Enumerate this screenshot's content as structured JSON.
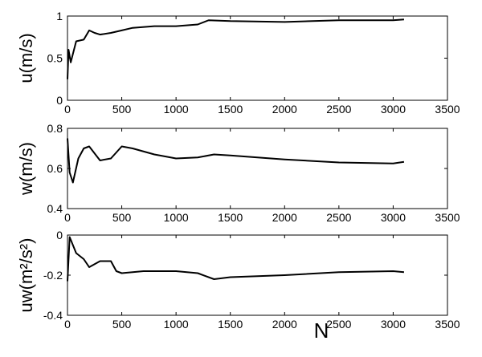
{
  "chart_data": [
    {
      "type": "line",
      "ylabel": "u(m/s)",
      "x": [
        0,
        10,
        30,
        50,
        80,
        150,
        200,
        250,
        300,
        400,
        500,
        600,
        800,
        1000,
        1200,
        1300,
        1500,
        2000,
        2500,
        3000,
        3100
      ],
      "series": [
        {
          "color": "#000000",
          "values": [
            0.25,
            0.6,
            0.45,
            0.55,
            0.7,
            0.72,
            0.83,
            0.8,
            0.78,
            0.8,
            0.83,
            0.86,
            0.88,
            0.88,
            0.9,
            0.95,
            0.94,
            0.93,
            0.95,
            0.95,
            0.96
          ]
        }
      ],
      "xlim": [
        0,
        3500
      ],
      "xticks": [
        0,
        500,
        1000,
        1500,
        2000,
        2500,
        3000,
        3500
      ],
      "ylim": [
        0,
        1
      ],
      "yticks": [
        0,
        0.5,
        1
      ]
    },
    {
      "type": "line",
      "ylabel": "w(m/s)",
      "x": [
        0,
        20,
        50,
        100,
        150,
        200,
        300,
        400,
        450,
        500,
        600,
        800,
        1000,
        1200,
        1350,
        1500,
        2000,
        2500,
        3000,
        3100
      ],
      "series": [
        {
          "color": "#000000",
          "values": [
            0.75,
            0.58,
            0.53,
            0.65,
            0.7,
            0.71,
            0.64,
            0.65,
            0.68,
            0.71,
            0.7,
            0.67,
            0.65,
            0.655,
            0.67,
            0.665,
            0.645,
            0.63,
            0.625,
            0.633
          ]
        }
      ],
      "xlim": [
        0,
        3500
      ],
      "xticks": [
        0,
        500,
        1000,
        1500,
        2000,
        2500,
        3000,
        3500
      ],
      "ylim": [
        0.4,
        0.8
      ],
      "yticks": [
        0.4,
        0.6,
        0.8
      ]
    },
    {
      "type": "line",
      "ylabel": "uw(m²/s²)",
      "xlabel": "N",
      "x": [
        0,
        20,
        50,
        80,
        150,
        200,
        300,
        400,
        450,
        500,
        700,
        1000,
        1200,
        1350,
        1500,
        2000,
        2500,
        3000,
        3100
      ],
      "series": [
        {
          "color": "#000000",
          "values": [
            -0.23,
            -0.01,
            -0.05,
            -0.09,
            -0.12,
            -0.16,
            -0.13,
            -0.13,
            -0.18,
            -0.19,
            -0.18,
            -0.18,
            -0.19,
            -0.22,
            -0.21,
            -0.2,
            -0.185,
            -0.18,
            -0.185
          ]
        }
      ],
      "xlim": [
        0,
        3500
      ],
      "xticks": [
        0,
        500,
        1000,
        1500,
        2000,
        2500,
        3000,
        3500
      ],
      "ylim": [
        -0.4,
        0
      ],
      "yticks": [
        -0.4,
        -0.2,
        0
      ]
    }
  ]
}
